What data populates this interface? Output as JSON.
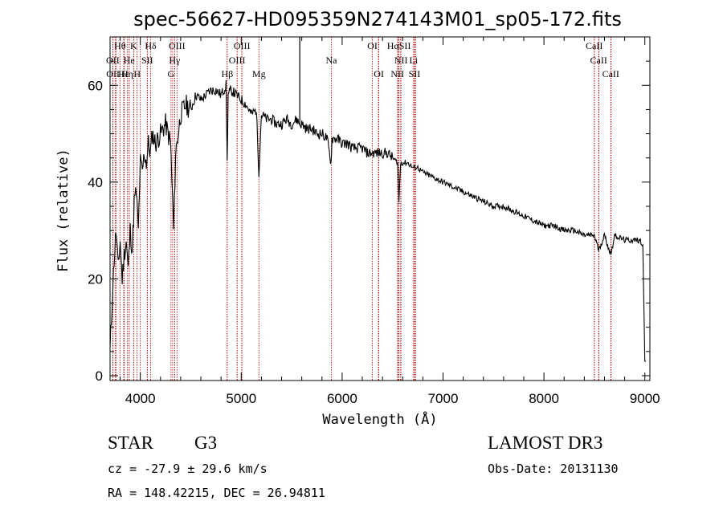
{
  "chart_data": {
    "type": "line",
    "title": "spec-56627-HD095359N274143M01_sp05-172.fits",
    "xlabel": "Wavelength (Å)",
    "ylabel": "Flux (relative)",
    "xlim": [
      3700,
      9050
    ],
    "ylim": [
      -1,
      70
    ],
    "xticks": [
      4000,
      5000,
      6000,
      7000,
      8000,
      9000
    ],
    "yticks": [
      0,
      20,
      40,
      60
    ],
    "grid": false,
    "series": [
      {
        "name": "spectrum",
        "x": [
          3700,
          3720,
          3740,
          3760,
          3780,
          3800,
          3820,
          3840,
          3860,
          3880,
          3900,
          3920,
          3940,
          3960,
          3980,
          4000,
          4020,
          4040,
          4060,
          4080,
          4100,
          4120,
          4150,
          4200,
          4250,
          4300,
          4330,
          4350,
          4400,
          4450,
          4500,
          4550,
          4600,
          4650,
          4700,
          4750,
          4800,
          4850,
          4861,
          4870,
          4900,
          4950,
          5000,
          5050,
          5100,
          5150,
          5175,
          5200,
          5250,
          5300,
          5350,
          5400,
          5450,
          5500,
          5550,
          5580,
          5600,
          5650,
          5700,
          5750,
          5800,
          5850,
          5890,
          5900,
          5950,
          6000,
          6050,
          6100,
          6150,
          6200,
          6250,
          6300,
          6350,
          6400,
          6450,
          6500,
          6550,
          6563,
          6580,
          6600,
          6650,
          6700,
          6750,
          6800,
          6900,
          7000,
          7100,
          7200,
          7300,
          7400,
          7500,
          7600,
          7700,
          7800,
          7900,
          8000,
          8100,
          8200,
          8300,
          8400,
          8500,
          8542,
          8600,
          8662,
          8700,
          8800,
          8900,
          8950,
          8980,
          9000,
          9010
        ],
        "y": [
          5,
          15,
          24,
          30,
          22,
          28,
          20,
          25,
          28,
          22,
          30,
          26,
          36,
          38,
          30,
          44,
          42,
          46,
          44,
          48,
          46,
          50,
          48,
          50,
          52,
          48,
          30,
          46,
          54,
          56,
          55,
          58,
          57,
          58,
          59,
          59,
          58,
          60,
          44,
          58,
          59,
          58,
          57,
          56,
          54,
          55,
          42,
          54,
          53,
          53,
          52,
          52,
          53,
          52,
          53,
          52,
          52,
          51,
          51,
          50,
          50,
          49,
          44,
          49,
          49,
          48,
          48,
          47,
          47,
          47,
          46,
          46,
          46,
          46,
          46,
          45,
          44,
          36,
          44,
          44,
          44,
          43,
          43,
          42,
          41,
          40,
          39,
          38,
          37,
          36,
          35,
          35,
          34,
          33,
          32,
          31,
          31,
          30,
          30,
          29,
          29,
          26,
          29,
          25,
          29,
          28,
          28,
          28,
          27,
          3,
          3
        ]
      }
    ],
    "line_markers": [
      {
        "label": "Hθ",
        "x": 3798,
        "row": 0
      },
      {
        "label": "K",
        "x": 3934,
        "row": 0
      },
      {
        "label": "Hδ",
        "x": 4102,
        "row": 0
      },
      {
        "label": "OIII",
        "x": 4363,
        "row": 0
      },
      {
        "label": "OIII",
        "x": 5007,
        "row": 0
      },
      {
        "label": "OI",
        "x": 6300,
        "row": 0
      },
      {
        "label": "HαSII",
        "x": 6563,
        "row": 0
      },
      {
        "label": "CaII",
        "x": 8498,
        "row": 0
      },
      {
        "label": "OII",
        "x": 3727,
        "row": 1
      },
      {
        "label": "He",
        "x": 3889,
        "row": 1
      },
      {
        "label": "SII",
        "x": 4069,
        "row": 1
      },
      {
        "label": "Hγ",
        "x": 4340,
        "row": 1
      },
      {
        "label": "OIII",
        "x": 4959,
        "row": 1
      },
      {
        "label": "Na",
        "x": 5893,
        "row": 1
      },
      {
        "label": "NII",
        "x": 6583,
        "row": 1
      },
      {
        "label": "Li",
        "x": 6708,
        "row": 1
      },
      {
        "label": "CaII",
        "x": 8542,
        "row": 1
      },
      {
        "label": "OII",
        "x": 3729,
        "row": 2
      },
      {
        "label": "Hε",
        "x": 3835,
        "row": 2
      },
      {
        "label": "Hη",
        "x": 3870,
        "row": 2
      },
      {
        "label": "H",
        "x": 3968,
        "row": 2
      },
      {
        "label": "G",
        "x": 4304,
        "row": 2
      },
      {
        "label": "Hβ",
        "x": 4861,
        "row": 2
      },
      {
        "label": "Mg",
        "x": 5175,
        "row": 2
      },
      {
        "label": "OI",
        "x": 6364,
        "row": 2
      },
      {
        "label": "NII",
        "x": 6548,
        "row": 2
      },
      {
        "label": "SII",
        "x": 6717,
        "row": 2
      },
      {
        "label": "CaII",
        "x": 8662,
        "row": 2
      }
    ],
    "extra_lines": [
      3750,
      3760,
      3840,
      3890,
      3933,
      4000,
      4070,
      4320,
      4340,
      4860,
      4960,
      5005,
      6300,
      6360,
      6550,
      6560,
      6580,
      6710,
      6730,
      8500,
      8545,
      8665
    ]
  },
  "info": {
    "object_class": "STAR",
    "subclass": "G3",
    "survey": "LAMOST DR3",
    "cz": "cz = -27.9 ± 29.6 km/s",
    "obs_date": "Obs-Date: 20131130",
    "coords": "RA = 148.42215, DEC =  26.94811"
  },
  "colors": {
    "line_marker": "#b30000",
    "spectrum": "#000000"
  }
}
